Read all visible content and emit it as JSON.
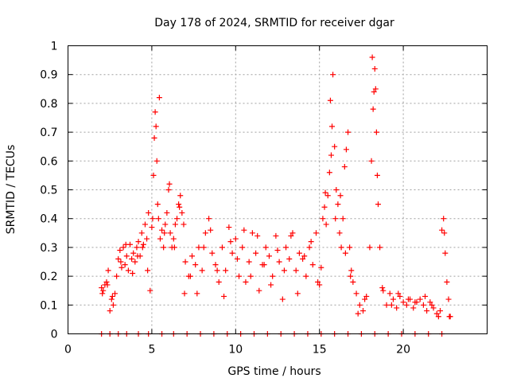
{
  "chart_data": {
    "type": "scatter",
    "title": "Day 178 of 2024, SRMTID for receiver dgar",
    "xlabel": "GPS time / hours",
    "ylabel": "SRMTID / TECUs",
    "xlim": [
      0,
      25
    ],
    "ylim": [
      0,
      1
    ],
    "xticks": [
      0,
      5,
      10,
      15,
      20
    ],
    "xtick_labels": [
      "0",
      "5",
      "10",
      "15",
      "20"
    ],
    "yticks": [
      0,
      0.1,
      0.2,
      0.3,
      0.4,
      0.5,
      0.6,
      0.7,
      0.8,
      0.9,
      1
    ],
    "ytick_labels": [
      "0",
      "0.1",
      "0.2",
      "0.3",
      "0.4",
      "0.5",
      "0.6",
      "0.7",
      "0.8",
      "0.9",
      "1"
    ],
    "grid": true,
    "marker": "plus",
    "series": [
      {
        "name": "SRMTID",
        "color": "#ff0000",
        "x": [
          2.0,
          2.1,
          2.2,
          2.3,
          2.4,
          2.5,
          2.6,
          2.7,
          2.8,
          2.9,
          3.0,
          3.1,
          3.2,
          3.3,
          3.4,
          3.5,
          3.6,
          3.7,
          3.8,
          3.9,
          4.0,
          4.1,
          4.2,
          4.3,
          4.4,
          4.5,
          4.6,
          4.7,
          4.8,
          4.9,
          5.0,
          5.1,
          5.15,
          5.2,
          5.25,
          5.3,
          5.35,
          5.4,
          5.5,
          5.6,
          5.7,
          5.8,
          5.9,
          6.0,
          6.1,
          6.2,
          6.3,
          6.4,
          6.5,
          6.6,
          6.7,
          6.8,
          6.9,
          7.0,
          7.2,
          7.4,
          7.6,
          7.8,
          8.0,
          8.2,
          8.4,
          8.6,
          8.8,
          9.0,
          9.2,
          9.4,
          9.6,
          9.8,
          10.0,
          10.2,
          10.4,
          10.6,
          10.8,
          11.0,
          11.2,
          11.4,
          11.6,
          11.8,
          12.0,
          12.2,
          12.4,
          12.6,
          12.8,
          13.0,
          13.2,
          13.4,
          13.6,
          13.8,
          14.0,
          14.2,
          14.4,
          14.6,
          14.8,
          15.0,
          15.1,
          15.2,
          15.3,
          15.4,
          15.5,
          15.6,
          15.7,
          15.75,
          15.8,
          15.9,
          16.0,
          16.1,
          16.2,
          16.3,
          16.4,
          16.5,
          16.6,
          16.7,
          16.8,
          16.9,
          17.0,
          17.2,
          17.4,
          17.6,
          17.8,
          18.0,
          18.1,
          18.2,
          18.25,
          18.3,
          18.35,
          18.4,
          18.5,
          18.6,
          18.8,
          19.0,
          19.2,
          19.4,
          19.6,
          19.8,
          20.0,
          20.2,
          20.4,
          20.6,
          20.8,
          21.0,
          21.2,
          21.4,
          21.6,
          21.8,
          22.0,
          22.2,
          22.3,
          22.4,
          22.5,
          22.6,
          22.7,
          22.8,
          2.05,
          2.35,
          2.65,
          3.15,
          3.45,
          3.85,
          4.15,
          4.45,
          4.75,
          5.05,
          5.45,
          5.75,
          6.05,
          6.35,
          6.65,
          6.95,
          7.3,
          7.7,
          8.1,
          8.5,
          8.9,
          9.3,
          9.7,
          10.1,
          10.5,
          10.9,
          11.3,
          11.7,
          12.1,
          12.5,
          12.9,
          13.3,
          13.7,
          14.1,
          14.5,
          14.9,
          15.35,
          15.65,
          15.95,
          16.25,
          16.55,
          16.85,
          17.3,
          17.7,
          18.15,
          18.45,
          18.75,
          19.3,
          19.7,
          20.3,
          20.7,
          21.3,
          21.7,
          22.1,
          22.45,
          22.75,
          2.0,
          2.5,
          3.0,
          3.5,
          4.2,
          4.8,
          5.6,
          6.3,
          7.1,
          7.9,
          8.7,
          9.5,
          10.3,
          11.1,
          11.9,
          12.7,
          13.5,
          14.3,
          15.1,
          15.9,
          16.7,
          17.5,
          18.3,
          19.1,
          19.9,
          20.7,
          21.5,
          22.3
        ],
        "y": [
          0.16,
          0.15,
          0.17,
          0.18,
          0.22,
          0.08,
          0.12,
          0.1,
          0.14,
          0.2,
          0.26,
          0.29,
          0.23,
          0.3,
          0.24,
          0.27,
          0.22,
          0.31,
          0.26,
          0.28,
          0.25,
          0.3,
          0.32,
          0.27,
          0.35,
          0.31,
          0.38,
          0.33,
          0.42,
          0.15,
          0.37,
          0.55,
          0.68,
          0.77,
          0.72,
          0.6,
          0.45,
          0.4,
          0.33,
          0.36,
          0.3,
          0.38,
          0.42,
          0.5,
          0.35,
          0.3,
          0.33,
          0.38,
          0.4,
          0.45,
          0.48,
          0.42,
          0.38,
          0.25,
          0.2,
          0.27,
          0.24,
          0.3,
          0.22,
          0.35,
          0.4,
          0.28,
          0.24,
          0.18,
          0.3,
          0.22,
          0.37,
          0.28,
          0.33,
          0.2,
          0.3,
          0.18,
          0.25,
          0.35,
          0.28,
          0.15,
          0.24,
          0.3,
          0.27,
          0.2,
          0.34,
          0.25,
          0.12,
          0.3,
          0.26,
          0.35,
          0.22,
          0.28,
          0.26,
          0.2,
          0.3,
          0.24,
          0.35,
          0.17,
          0.23,
          0.4,
          0.44,
          0.38,
          0.48,
          0.56,
          0.62,
          0.72,
          0.9,
          0.65,
          0.5,
          0.45,
          0.35,
          0.3,
          0.4,
          0.58,
          0.64,
          0.7,
          0.3,
          0.22,
          0.18,
          0.14,
          0.1,
          0.08,
          0.13,
          0.3,
          0.6,
          0.78,
          0.84,
          0.92,
          0.85,
          0.7,
          0.45,
          0.3,
          0.15,
          0.1,
          0.14,
          0.12,
          0.09,
          0.13,
          0.11,
          0.1,
          0.12,
          0.09,
          0.11,
          0.12,
          0.1,
          0.08,
          0.11,
          0.09,
          0.07,
          0.08,
          0.36,
          0.4,
          0.28,
          0.18,
          0.12,
          0.06,
          0.14,
          0.17,
          0.13,
          0.25,
          0.31,
          0.21,
          0.27,
          0.3,
          0.22,
          0.4,
          0.82,
          0.35,
          0.52,
          0.3,
          0.44,
          0.14,
          0.2,
          0.14,
          0.3,
          0.36,
          0.22,
          0.13,
          0.32,
          0.26,
          0.36,
          0.2,
          0.34,
          0.24,
          0.17,
          0.29,
          0.22,
          0.34,
          0.14,
          0.27,
          0.32,
          0.18,
          0.49,
          0.81,
          0.4,
          0.48,
          0.28,
          0.2,
          0.07,
          0.12,
          0.96,
          0.55,
          0.16,
          0.1,
          0.14,
          0.12,
          0.11,
          0.13,
          0.1,
          0.06,
          0.35,
          0.06,
          0,
          0,
          0,
          0,
          0,
          0,
          0,
          0,
          0,
          0,
          0,
          0,
          0,
          0,
          0,
          0,
          0,
          0,
          0,
          0,
          0,
          0,
          0,
          0,
          0,
          0,
          0,
          0
        ]
      }
    ]
  }
}
